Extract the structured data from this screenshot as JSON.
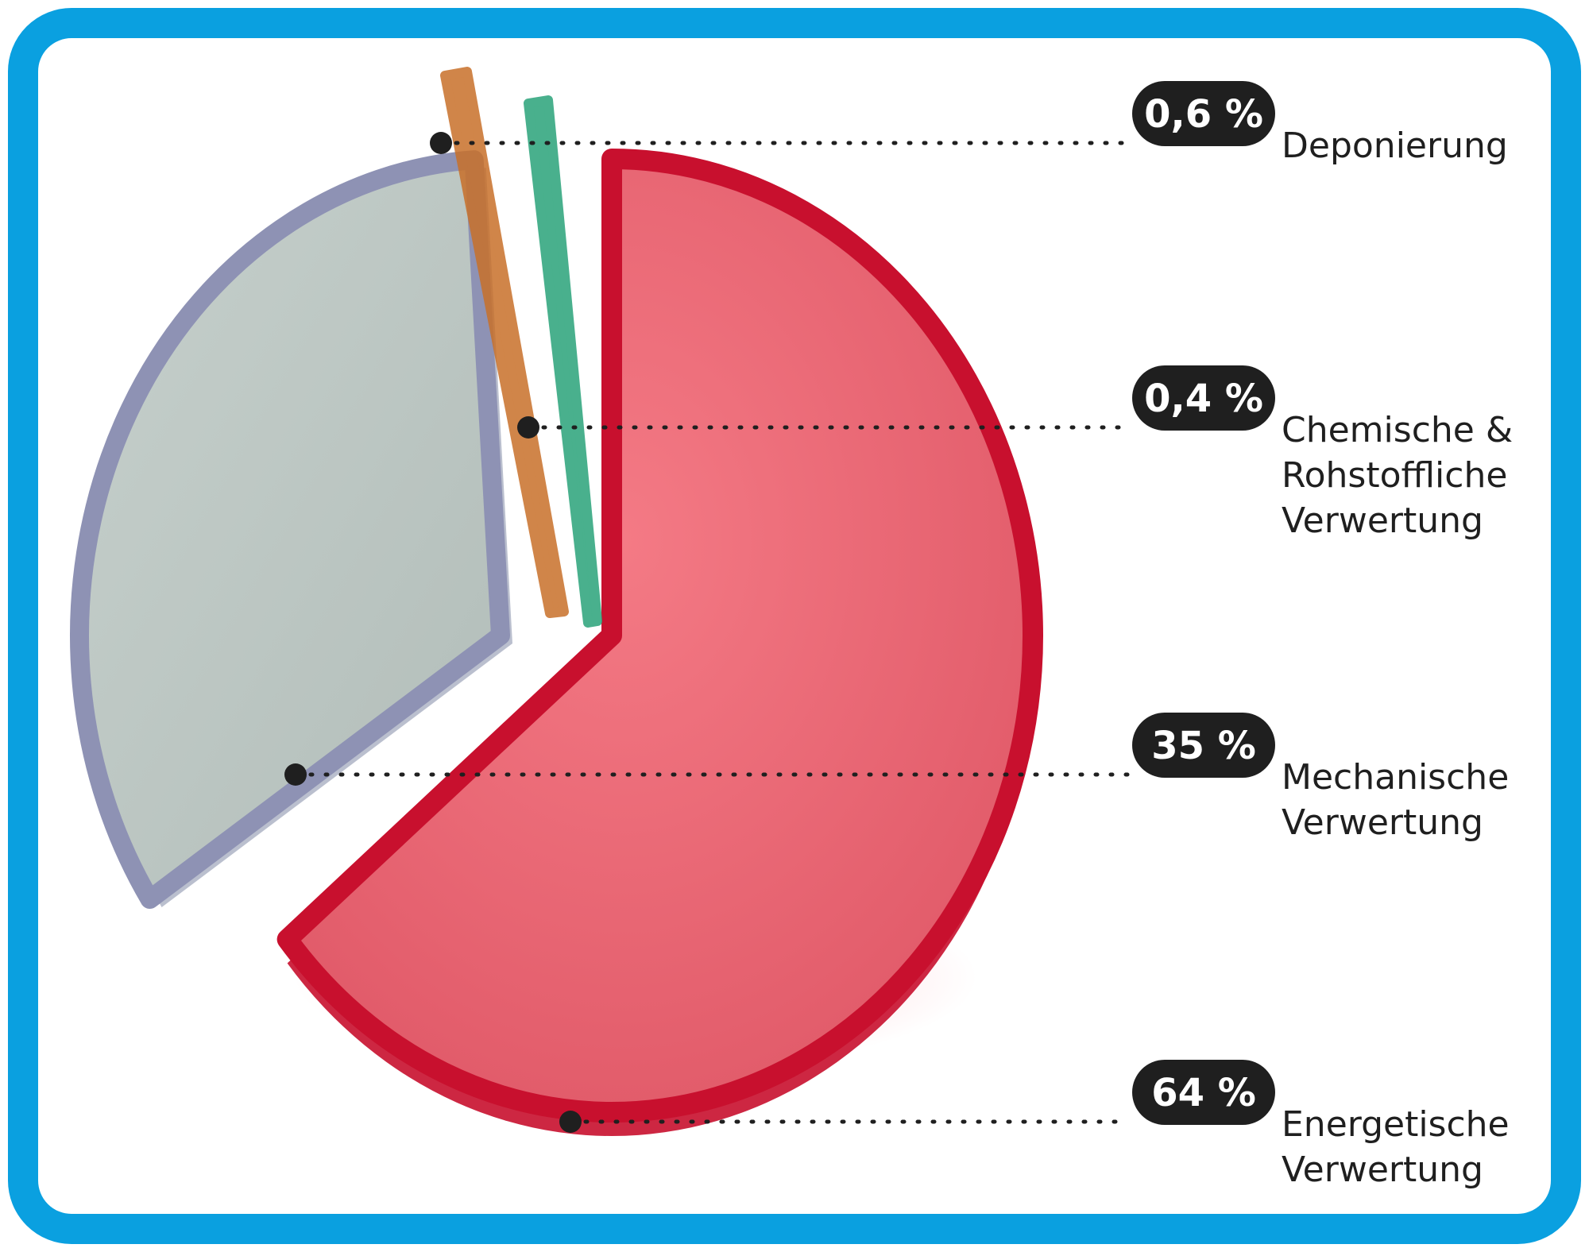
{
  "frame": {
    "border_color": "#0aa0e0",
    "background": "#ffffff"
  },
  "chart_data": {
    "type": "pie",
    "title": "",
    "unit": "%",
    "slices": [
      {
        "name": "Deponierung",
        "value": 0.6,
        "value_label": "0,6 %",
        "label_lines": [
          "Deponierung"
        ],
        "color": "#c8702a"
      },
      {
        "name": "Chemische & Rohstoffliche Verwertung",
        "value": 0.4,
        "value_label": "0,4 %",
        "label_lines": [
          "Chemische &",
          "Rohstoffliche",
          "Verwertung"
        ],
        "color": "#2aa37a"
      },
      {
        "name": "Mechanische Verwertung",
        "value": 35,
        "value_label": "35 %",
        "label_lines": [
          "Mechanische",
          "Verwertung"
        ],
        "color": "#b9c3c0"
      },
      {
        "name": "Energetische Verwertung",
        "value": 64,
        "value_label": "64 %",
        "label_lines": [
          "Energetische",
          "Verwertung"
        ],
        "color": "#ef6a78"
      }
    ],
    "legend": "right",
    "grid": false
  }
}
